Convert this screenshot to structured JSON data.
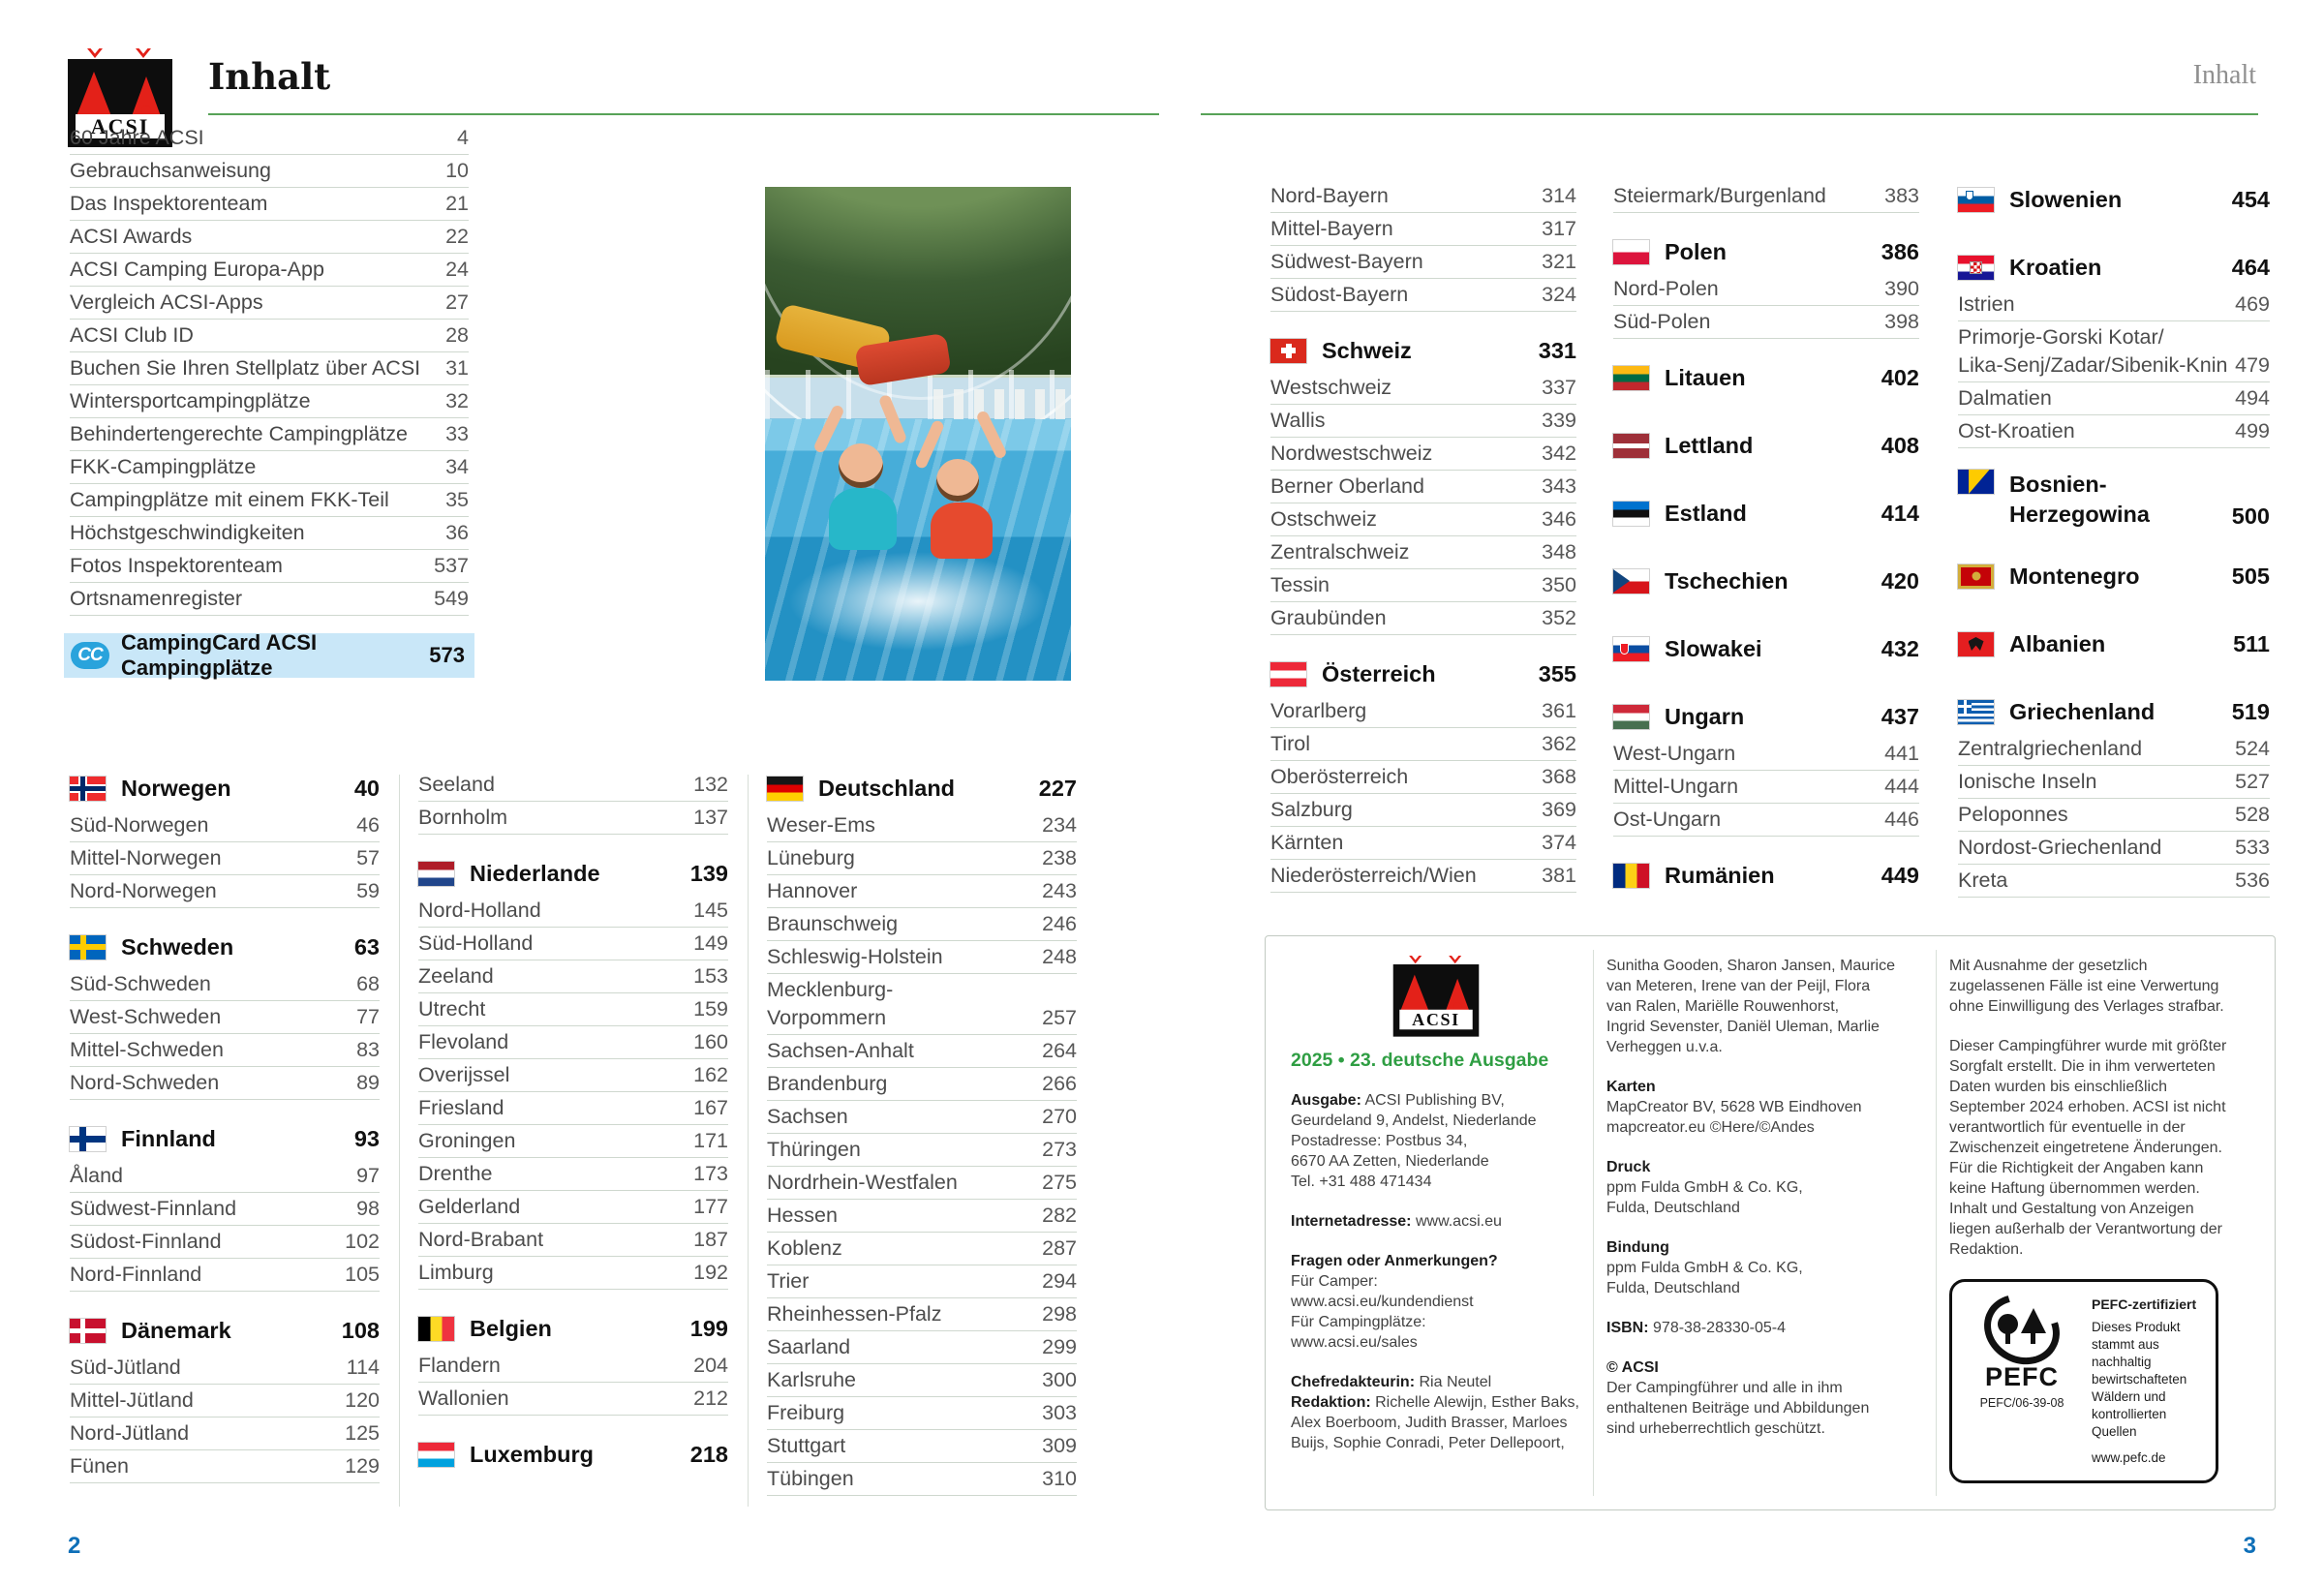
{
  "brand": {
    "logo_text": "ACSI"
  },
  "header": {
    "title": "Inhalt",
    "corner_title": "Inhalt"
  },
  "colors": {
    "accent_green_line": "#57a257",
    "edition_green": "#2f9e43",
    "campingcard_highlight": "#c9e7f8",
    "campingcard_badge_blue": "#29a3dc",
    "page_number_blue": "#0e6fb8"
  },
  "page_left": {
    "intro": [
      {
        "label": "60 Jahre ACSI",
        "page": "4"
      },
      {
        "label": "Gebrauchsanweisung",
        "page": "10"
      },
      {
        "label": "Das Inspektorenteam",
        "page": "21"
      },
      {
        "label": "ACSI Awards",
        "page": "22"
      },
      {
        "label": "ACSI Camping Europa-App",
        "page": "24"
      },
      {
        "label": "Vergleich ACSI-Apps",
        "page": "27"
      },
      {
        "label": "ACSI Club ID",
        "page": "28"
      },
      {
        "label": "Buchen Sie Ihren Stellplatz über ACSI",
        "page": "31"
      },
      {
        "label": "Wintersportcampingplätze",
        "page": "32"
      },
      {
        "label": "Behindertengerechte Campingplätze",
        "page": "33"
      },
      {
        "label": "FKK-Campingplätze",
        "page": "34"
      },
      {
        "label": "Campingplätze mit einem FKK-Teil",
        "page": "35"
      },
      {
        "label": "Höchstgeschwindigkeiten",
        "page": "36"
      },
      {
        "label": "Fotos Inspektorenteam",
        "page": "537"
      },
      {
        "label": "Ortsnamenregister",
        "page": "549"
      }
    ],
    "campingcard": {
      "icon": "CC",
      "label": "CampingCard ACSI Campingplätze",
      "page": "573"
    },
    "columns": [
      [
        {
          "country": "Norwegen",
          "flag": "no",
          "page": "40",
          "regions": [
            {
              "label": "Süd-Norwegen",
              "page": "46"
            },
            {
              "label": "Mittel-Norwegen",
              "page": "57"
            },
            {
              "label": "Nord-Norwegen",
              "page": "59"
            }
          ]
        },
        {
          "country": "Schweden",
          "flag": "se",
          "page": "63",
          "regions": [
            {
              "label": "Süd-Schweden",
              "page": "68"
            },
            {
              "label": "West-Schweden",
              "page": "77"
            },
            {
              "label": "Mittel-Schweden",
              "page": "83"
            },
            {
              "label": "Nord-Schweden",
              "page": "89"
            }
          ]
        },
        {
          "country": "Finnland",
          "flag": "fi",
          "page": "93",
          "regions": [
            {
              "label": "Åland",
              "page": "97"
            },
            {
              "label": "Südwest-Finnland",
              "page": "98"
            },
            {
              "label": "Südost-Finnland",
              "page": "102"
            },
            {
              "label": "Nord-Finnland",
              "page": "105"
            }
          ]
        },
        {
          "country": "Dänemark",
          "flag": "dk",
          "page": "108",
          "regions": [
            {
              "label": "Süd-Jütland",
              "page": "114"
            },
            {
              "label": "Mittel-Jütland",
              "page": "120"
            },
            {
              "label": "Nord-Jütland",
              "page": "125"
            },
            {
              "label": "Fünen",
              "page": "129"
            }
          ]
        }
      ],
      [
        {
          "regions": [
            {
              "label": "Seeland",
              "page": "132"
            },
            {
              "label": "Bornholm",
              "page": "137"
            }
          ]
        },
        {
          "country": "Niederlande",
          "flag": "nl",
          "page": "139",
          "regions": [
            {
              "label": "Nord-Holland",
              "page": "145"
            },
            {
              "label": "Süd-Holland",
              "page": "149"
            },
            {
              "label": "Zeeland",
              "page": "153"
            },
            {
              "label": "Utrecht",
              "page": "159"
            },
            {
              "label": "Flevoland",
              "page": "160"
            },
            {
              "label": "Overijssel",
              "page": "162"
            },
            {
              "label": "Friesland",
              "page": "167"
            },
            {
              "label": "Groningen",
              "page": "171"
            },
            {
              "label": "Drenthe",
              "page": "173"
            },
            {
              "label": "Gelderland",
              "page": "177"
            },
            {
              "label": "Nord-Brabant",
              "page": "187"
            },
            {
              "label": "Limburg",
              "page": "192"
            }
          ]
        },
        {
          "country": "Belgien",
          "flag": "be",
          "page": "199",
          "regions": [
            {
              "label": "Flandern",
              "page": "204"
            },
            {
              "label": "Wallonien",
              "page": "212"
            }
          ]
        },
        {
          "country": "Luxemburg",
          "flag": "lu",
          "page": "218",
          "regions": []
        }
      ],
      [
        {
          "country": "Deutschland",
          "flag": "de",
          "page": "227",
          "regions": [
            {
              "label": "Weser-Ems",
              "page": "234"
            },
            {
              "label": "Lüneburg",
              "page": "238"
            },
            {
              "label": "Hannover",
              "page": "243"
            },
            {
              "label": "Braunschweig",
              "page": "246"
            },
            {
              "label": "Schleswig-Holstein",
              "page": "248"
            },
            {
              "label": "Mecklenburg-\nVorpommern",
              "page": "257"
            },
            {
              "label": "Sachsen-Anhalt",
              "page": "264"
            },
            {
              "label": "Brandenburg",
              "page": "266"
            },
            {
              "label": "Sachsen",
              "page": "270"
            },
            {
              "label": "Thüringen",
              "page": "273"
            },
            {
              "label": "Nordrhein-Westfalen",
              "page": "275"
            },
            {
              "label": "Hessen",
              "page": "282"
            },
            {
              "label": "Koblenz",
              "page": "287"
            },
            {
              "label": "Trier",
              "page": "294"
            },
            {
              "label": "Rheinhessen-Pfalz",
              "page": "298"
            },
            {
              "label": "Saarland",
              "page": "299"
            },
            {
              "label": "Karlsruhe",
              "page": "300"
            },
            {
              "label": "Freiburg",
              "page": "303"
            },
            {
              "label": "Stuttgart",
              "page": "309"
            },
            {
              "label": "Tübingen",
              "page": "310"
            }
          ]
        }
      ]
    ]
  },
  "page_right": {
    "columns": [
      [
        {
          "regions": [
            {
              "label": "Nord-Bayern",
              "page": "314"
            },
            {
              "label": "Mittel-Bayern",
              "page": "317"
            },
            {
              "label": "Südwest-Bayern",
              "page": "321"
            },
            {
              "label": "Südost-Bayern",
              "page": "324"
            }
          ]
        },
        {
          "country": "Schweiz",
          "flag": "ch",
          "page": "331",
          "regions": [
            {
              "label": "Westschweiz",
              "page": "337"
            },
            {
              "label": "Wallis",
              "page": "339"
            },
            {
              "label": "Nordwestschweiz",
              "page": "342"
            },
            {
              "label": "Berner Oberland",
              "page": "343"
            },
            {
              "label": "Ostschweiz",
              "page": "346"
            },
            {
              "label": "Zentralschweiz",
              "page": "348"
            },
            {
              "label": "Tessin",
              "page": "350"
            },
            {
              "label": "Graubünden",
              "page": "352"
            }
          ]
        },
        {
          "country": "Österreich",
          "flag": "at",
          "page": "355",
          "regions": [
            {
              "label": "Vorarlberg",
              "page": "361"
            },
            {
              "label": "Tirol",
              "page": "362"
            },
            {
              "label": "Oberösterreich",
              "page": "368"
            },
            {
              "label": "Salzburg",
              "page": "369"
            },
            {
              "label": "Kärnten",
              "page": "374"
            },
            {
              "label": "Niederösterreich/Wien",
              "page": "381"
            }
          ]
        }
      ],
      [
        {
          "regions": [
            {
              "label": "Steiermark/Burgenland",
              "page": "383"
            }
          ]
        },
        {
          "country": "Polen",
          "flag": "pl",
          "page": "386",
          "regions": [
            {
              "label": "Nord-Polen",
              "page": "390"
            },
            {
              "label": "Süd-Polen",
              "page": "398"
            }
          ]
        },
        {
          "country": "Litauen",
          "flag": "lt",
          "page": "402",
          "regions": []
        },
        {
          "country": "Lettland",
          "flag": "lv",
          "page": "408",
          "regions": []
        },
        {
          "country": "Estland",
          "flag": "ee",
          "page": "414",
          "regions": []
        },
        {
          "country": "Tschechien",
          "flag": "cz",
          "page": "420",
          "regions": []
        },
        {
          "country": "Slowakei",
          "flag": "sk",
          "page": "432",
          "regions": []
        },
        {
          "country": "Ungarn",
          "flag": "hu",
          "page": "437",
          "regions": [
            {
              "label": "West-Ungarn",
              "page": "441"
            },
            {
              "label": "Mittel-Ungarn",
              "page": "444"
            },
            {
              "label": "Ost-Ungarn",
              "page": "446"
            }
          ]
        },
        {
          "country": "Rumänien",
          "flag": "ro",
          "page": "449",
          "regions": []
        }
      ],
      [
        {
          "country": "Slowenien",
          "flag": "si",
          "page": "454",
          "regions": []
        },
        {
          "country": "Kroatien",
          "flag": "hr",
          "page": "464",
          "regions": [
            {
              "label": "Istrien",
              "page": "469"
            },
            {
              "label": "Primorje-Gorski Kotar/\nLika-Senj/Zadar/Sibenik-Knin",
              "page": "479"
            },
            {
              "label": "Dalmatien",
              "page": "494"
            },
            {
              "label": "Ost-Kroatien",
              "page": "499"
            }
          ]
        },
        {
          "country": "Bosnien-\nHerzegowina",
          "flag": "ba",
          "page": "500",
          "regions": []
        },
        {
          "country": "Montenegro",
          "flag": "me",
          "page": "505",
          "regions": []
        },
        {
          "country": "Albanien",
          "flag": "al",
          "page": "511",
          "regions": []
        },
        {
          "country": "Griechenland",
          "flag": "gr",
          "page": "519",
          "regions": [
            {
              "label": "Zentralgriechenland",
              "page": "524"
            },
            {
              "label": "Ionische Inseln",
              "page": "527"
            },
            {
              "label": "Peloponnes",
              "page": "528"
            },
            {
              "label": "Nordost-Griechenland",
              "page": "533"
            },
            {
              "label": "Kreta",
              "page": "536"
            }
          ]
        }
      ]
    ],
    "imprint": {
      "edition": "2025 • 23. deutsche Ausgabe",
      "columns": [
        {
          "blocks": [
            {
              "label": "Ausgabe:",
              "text": "ACSI Publishing BV,\nGeurdeland 9, Andelst, Niederlande\nPostadresse: Postbus 34,\n6670 AA Zetten, Niederlande\nTel. +31 488 471434"
            },
            {
              "label": "Internetadresse:",
              "text": "www.acsi.eu"
            },
            {
              "label": "Fragen oder Anmerkungen?",
              "label_block": true,
              "text": "Für Camper:\nwww.acsi.eu/kundendienst\nFür Campingplätze:\nwww.acsi.eu/sales"
            },
            {
              "label": "Chefredakteurin:",
              "text": "Ria Neutel",
              "tight": true
            },
            {
              "label": "Redaktion:",
              "text": "Richelle Alewijn, Esther Baks, Alex Boerboom, Judith Brasser, Marloes Buijs, Sophie Conradi, Peter Dellepoort,",
              "tight": true
            }
          ]
        },
        {
          "blocks": [
            {
              "text": "Sunitha Gooden, Sharon Jansen, Maurice\nvan Meteren, Irene van der Peijl, Flora\nvan Ralen, Mariëlle Rouwenhorst,\nIngrid Sevenster, Daniël Uleman, Marlie\nVerheggen u.v.a."
            },
            {
              "label": "Karten",
              "label_block": true,
              "text": "MapCreator BV, 5628 WB Eindhoven\nmapcreator.eu ©Here/©Andes"
            },
            {
              "label": "Druck",
              "label_block": true,
              "text": "ppm Fulda GmbH & Co. KG,\nFulda, Deutschland"
            },
            {
              "label": "Bindung",
              "label_block": true,
              "text": "ppm Fulda GmbH & Co. KG,\nFulda, Deutschland"
            },
            {
              "label": "ISBN:",
              "text": "978-38-28330-05-4"
            },
            {
              "label": "© ACSI",
              "label_block": true,
              "text": "Der Campingführer und alle in ihm\nenthaltenen Beiträge und Abbildungen\nsind urheberrechtlich geschützt."
            }
          ]
        },
        {
          "blocks": [
            {
              "text": "Mit Ausnahme der gesetzlich\nzugelassenen Fälle ist eine Verwertung\nohne Einwilligung des Verlages strafbar."
            },
            {
              "text": "Dieser Campingführer wurde mit größter\nSorgfalt erstellt. Die in ihm verwerteten\nDaten wurden bis einschließlich\nSeptember 2024 erhoben. ACSI ist nicht\nverantwortlich für eventuelle in der\nZwischenzeit eingetretene Änderungen.\nFür die Richtigkeit der Angaben kann\nkeine Haftung übernommen werden.\nInhalt und Gestaltung von Anzeigen\nliegen außerhalb der Verantwortung der\nRedaktion."
            }
          ]
        }
      ]
    },
    "pefc": {
      "logo_word": "PEFC",
      "cert_number": "PEFC/06-39-08",
      "title": "PEFC-zertifiziert",
      "body": "Dieses Produkt\nstammt aus\nnachhaltig\nbewirtschafteten\nWäldern und\nkontrollierten Quellen",
      "url": "www.pefc.de"
    }
  },
  "footer": {
    "page_left_number": "2",
    "page_right_number": "3"
  }
}
